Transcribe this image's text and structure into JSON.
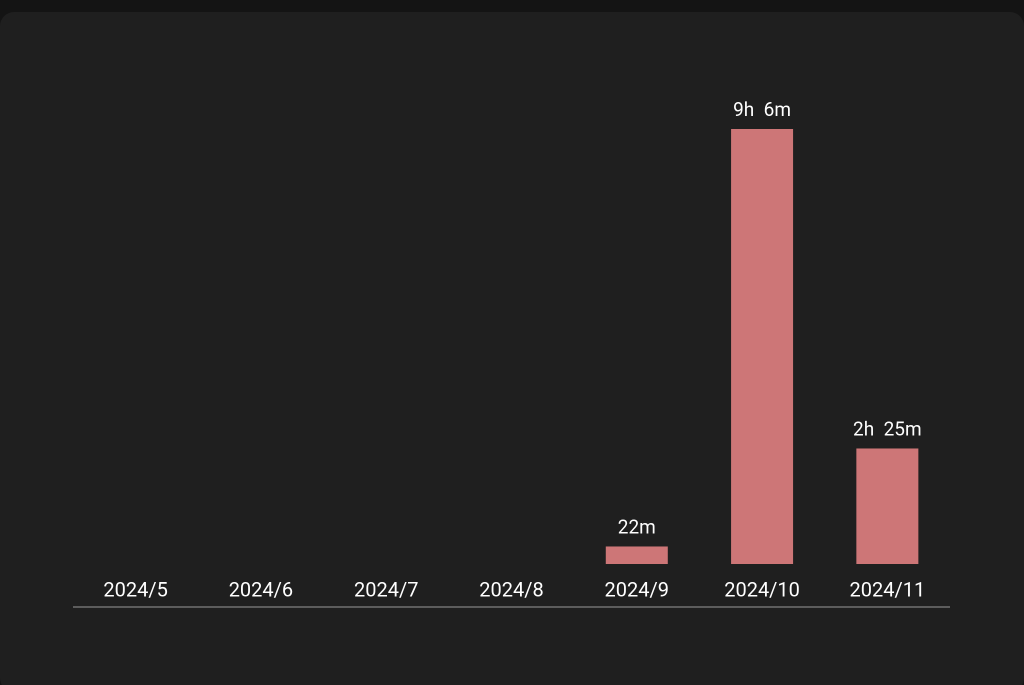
{
  "chart_data": {
    "type": "bar",
    "categories": [
      "2024/5",
      "2024/6",
      "2024/7",
      "2024/8",
      "2024/9",
      "2024/10",
      "2024/11"
    ],
    "values": [
      0,
      0,
      0,
      0,
      22,
      546,
      145
    ],
    "value_labels": [
      null,
      null,
      null,
      null,
      "22m",
      "9h  6m",
      "2h  25m"
    ],
    "color": "#cd7677"
  }
}
